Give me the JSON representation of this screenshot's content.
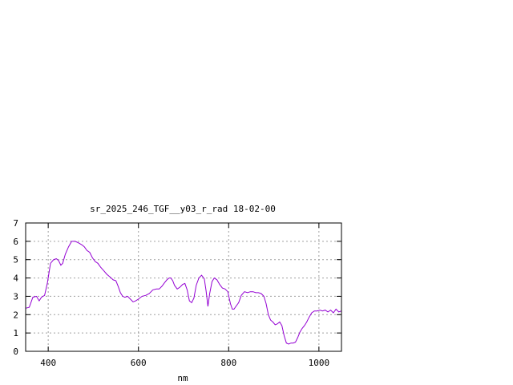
{
  "chart_data": {
    "type": "line",
    "title": "sr_2025_246_TGF__y03_r_rad 18-02-00",
    "xlabel": "nm",
    "ylabel": "",
    "xlim": [
      350,
      1050
    ],
    "ylim": [
      0,
      7
    ],
    "xticks": [
      400,
      600,
      800,
      1000
    ],
    "yticks": [
      0,
      1,
      2,
      3,
      4,
      5,
      6,
      7
    ],
    "grid": true,
    "series": [
      {
        "color": "#9400d3",
        "x": [
          350,
          358,
          366,
          374,
          380,
          385,
          392,
          398,
          405,
          412,
          418,
          423,
          428,
          432,
          438,
          445,
          452,
          460,
          468,
          475,
          480,
          486,
          492,
          498,
          504,
          510,
          516,
          523,
          530,
          537,
          544,
          550,
          555,
          560,
          565,
          570,
          576,
          582,
          588,
          594,
          600,
          608,
          616,
          624,
          632,
          640,
          646,
          652,
          658,
          663,
          668,
          672,
          676,
          680,
          686,
          692,
          698,
          703,
          708,
          713,
          718,
          723,
          728,
          734,
          740,
          746,
          750,
          754,
          758,
          763,
          768,
          774,
          780,
          786,
          792,
          798,
          804,
          808,
          812,
          816,
          822,
          828,
          835,
          842,
          848,
          854,
          860,
          866,
          872,
          878,
          883,
          888,
          893,
          898,
          903,
          908,
          913,
          918,
          923,
          928,
          933,
          938,
          943,
          948,
          953,
          958,
          963,
          968,
          973,
          978,
          984,
          990,
          996,
          1002,
          1008,
          1014,
          1020,
          1026,
          1032,
          1038,
          1044,
          1050
        ],
        "values": [
          2.35,
          2.4,
          2.95,
          3.0,
          2.75,
          2.95,
          3.05,
          3.7,
          4.8,
          5.0,
          5.05,
          4.95,
          4.7,
          4.8,
          5.3,
          5.7,
          6.0,
          6.0,
          5.9,
          5.8,
          5.7,
          5.5,
          5.4,
          5.1,
          4.9,
          4.8,
          4.6,
          4.4,
          4.2,
          4.05,
          3.9,
          3.85,
          3.55,
          3.2,
          3.0,
          2.95,
          3.0,
          2.85,
          2.7,
          2.75,
          2.85,
          3.0,
          3.05,
          3.15,
          3.35,
          3.4,
          3.4,
          3.55,
          3.75,
          3.9,
          4.0,
          4.0,
          3.85,
          3.6,
          3.4,
          3.5,
          3.65,
          3.7,
          3.35,
          2.75,
          2.65,
          2.9,
          3.6,
          4.0,
          4.15,
          3.95,
          3.3,
          2.45,
          3.15,
          3.8,
          4.0,
          3.9,
          3.65,
          3.45,
          3.4,
          3.25,
          2.6,
          2.3,
          2.3,
          2.45,
          2.65,
          3.05,
          3.25,
          3.2,
          3.25,
          3.25,
          3.2,
          3.2,
          3.15,
          3.0,
          2.6,
          2.0,
          1.7,
          1.6,
          1.45,
          1.5,
          1.6,
          1.4,
          0.85,
          0.45,
          0.4,
          0.45,
          0.45,
          0.5,
          0.75,
          1.05,
          1.25,
          1.4,
          1.6,
          1.85,
          2.1,
          2.2,
          2.2,
          2.25,
          2.2,
          2.25,
          2.15,
          2.25,
          2.1,
          2.3,
          2.15,
          2.2
        ]
      }
    ]
  }
}
